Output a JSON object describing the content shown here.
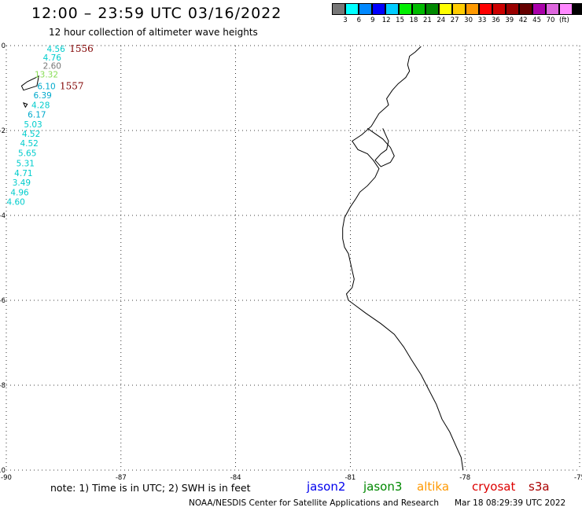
{
  "header": {
    "title": "12:00 – 23:59 UTC 03/16/2022",
    "subtitle": "12 hour collection of altimeter wave heights"
  },
  "legend": {
    "colors": [
      "#777777",
      "#00ffff",
      "#0088ff",
      "#0000ff",
      "#00ccff",
      "#00ee00",
      "#00bb00",
      "#008800",
      "#ffff00",
      "#ffcc00",
      "#ff9900",
      "#ff0000",
      "#cc0000",
      "#990000",
      "#660000",
      "#aa00aa",
      "#dd66dd",
      "#ff88ff",
      "#000000"
    ],
    "labels": [
      "3",
      "6",
      "9",
      "12",
      "15",
      "18",
      "21",
      "24",
      "27",
      "30",
      "33",
      "36",
      "39",
      "42",
      "45",
      "70",
      "(ft)"
    ]
  },
  "axes": {
    "lon_ticks": [
      "-90",
      "-87",
      "-84",
      "-81",
      "-78",
      "-75"
    ],
    "lat_ticks": [
      "0",
      "-2",
      "-4",
      "-6",
      "-8",
      "-10"
    ]
  },
  "tracks": {
    "times": [
      {
        "label": "1556",
        "lon": -88.35,
        "lat": -0.07,
        "color": "#800000"
      },
      {
        "label": "1557",
        "lon": -88.6,
        "lat": -0.95,
        "color": "#800000"
      }
    ],
    "heights": [
      {
        "value": "4.56",
        "lon": -88.7,
        "lat": -0.07,
        "color": "#00cccc"
      },
      {
        "value": "4.76",
        "lon": -88.8,
        "lat": -0.28,
        "color": "#00cccc"
      },
      {
        "value": "2.60",
        "lon": -88.8,
        "lat": -0.47,
        "color": "#777777"
      },
      {
        "value": "13.32",
        "lon": -88.95,
        "lat": -0.68,
        "color": "#88dd55"
      },
      {
        "value": "6.10",
        "lon": -88.95,
        "lat": -0.95,
        "color": "#00aacc"
      },
      {
        "value": "6.39",
        "lon": -89.05,
        "lat": -1.17,
        "color": "#00aacc"
      },
      {
        "value": "4.28",
        "lon": -89.1,
        "lat": -1.4,
        "color": "#00cccc"
      },
      {
        "value": "6.17",
        "lon": -89.2,
        "lat": -1.62,
        "color": "#00aacc"
      },
      {
        "value": "5.03",
        "lon": -89.3,
        "lat": -1.85,
        "color": "#00cccc"
      },
      {
        "value": "4.52",
        "lon": -89.35,
        "lat": -2.07,
        "color": "#00cccc"
      },
      {
        "value": "4.52",
        "lon": -89.4,
        "lat": -2.3,
        "color": "#00cccc"
      },
      {
        "value": "5.65",
        "lon": -89.45,
        "lat": -2.53,
        "color": "#00cccc"
      },
      {
        "value": "5.31",
        "lon": -89.5,
        "lat": -2.77,
        "color": "#00cccc"
      },
      {
        "value": "4.71",
        "lon": -89.55,
        "lat": -3.0,
        "color": "#00cccc"
      },
      {
        "value": "3.49",
        "lon": -89.6,
        "lat": -3.22,
        "color": "#00cccc"
      },
      {
        "value": "4.96",
        "lon": -89.65,
        "lat": -3.45,
        "color": "#00cccc"
      },
      {
        "value": "4.60",
        "lon": -89.75,
        "lat": -3.68,
        "color": "#00cccc"
      }
    ]
  },
  "note": "note:  1) Time is in UTC;  2) SWH is in feet",
  "satellites": [
    {
      "name": "jason2",
      "color": "#0000ee"
    },
    {
      "name": "jason3",
      "color": "#008800"
    },
    {
      "name": "altika",
      "color": "#ff9900"
    },
    {
      "name": "cryosat",
      "color": "#dd0000"
    },
    {
      "name": "s3a",
      "color": "#aa0000"
    }
  ],
  "credit": {
    "org": "NOAA/NESDIS Center for Satellite Applications and Research",
    "date": "Mar 18 08:29:39 UTC 2022"
  },
  "coastline": [
    [
      -79.15,
      -0.02
    ],
    [
      -79.3,
      -0.15
    ],
    [
      -79.45,
      -0.25
    ],
    [
      -79.5,
      -0.45
    ],
    [
      -79.45,
      -0.6
    ],
    [
      -79.55,
      -0.75
    ],
    [
      -79.75,
      -0.9
    ],
    [
      -79.9,
      -1.05
    ],
    [
      -80.05,
      -1.25
    ],
    [
      -80.0,
      -1.4
    ],
    [
      -80.25,
      -1.6
    ],
    [
      -80.35,
      -1.75
    ],
    [
      -80.45,
      -1.9
    ],
    [
      -80.7,
      -2.1
    ],
    [
      -80.95,
      -2.25
    ],
    [
      -80.8,
      -2.45
    ],
    [
      -80.55,
      -2.55
    ],
    [
      -80.4,
      -2.7
    ],
    [
      -80.25,
      -2.9
    ],
    [
      -80.35,
      -3.1
    ],
    [
      -80.55,
      -3.3
    ],
    [
      -80.75,
      -3.45
    ],
    [
      -80.85,
      -3.6
    ],
    [
      -81.0,
      -3.8
    ],
    [
      -81.15,
      -4.05
    ],
    [
      -81.2,
      -4.3
    ],
    [
      -81.2,
      -4.55
    ],
    [
      -81.15,
      -4.75
    ],
    [
      -81.05,
      -4.9
    ],
    [
      -81.0,
      -5.1
    ],
    [
      -80.95,
      -5.3
    ],
    [
      -80.9,
      -5.5
    ],
    [
      -80.95,
      -5.7
    ],
    [
      -81.1,
      -5.85
    ],
    [
      -81.05,
      -6.0
    ],
    [
      -80.9,
      -6.1
    ],
    [
      -80.6,
      -6.3
    ],
    [
      -80.2,
      -6.55
    ],
    [
      -79.85,
      -6.8
    ],
    [
      -79.6,
      -7.1
    ],
    [
      -79.4,
      -7.4
    ],
    [
      -79.15,
      -7.75
    ],
    [
      -78.95,
      -8.1
    ],
    [
      -78.75,
      -8.45
    ],
    [
      -78.6,
      -8.8
    ],
    [
      -78.4,
      -9.1
    ],
    [
      -78.25,
      -9.4
    ],
    [
      -78.1,
      -9.7
    ],
    [
      -78.05,
      -10.0
    ]
  ],
  "gulf_contour": [
    [
      -80.55,
      -1.95
    ],
    [
      -80.15,
      -2.2
    ],
    [
      -79.95,
      -2.4
    ],
    [
      -79.85,
      -2.6
    ],
    [
      -79.95,
      -2.75
    ],
    [
      -80.2,
      -2.85
    ],
    [
      -80.35,
      -2.7
    ],
    [
      -80.2,
      -2.55
    ],
    [
      -80.05,
      -2.45
    ],
    [
      -80.0,
      -2.25
    ],
    [
      -80.1,
      -2.05
    ],
    [
      -80.15,
      -1.95
    ]
  ],
  "islands": [
    [
      [
        -89.45,
        -0.85
      ],
      [
        -89.15,
        -0.72
      ],
      [
        -89.2,
        -0.95
      ],
      [
        -89.55,
        -1.05
      ],
      [
        -89.6,
        -0.95
      ]
    ],
    [
      [
        -89.55,
        -1.35
      ],
      [
        -89.45,
        -1.38
      ],
      [
        -89.5,
        -1.45
      ]
    ]
  ]
}
